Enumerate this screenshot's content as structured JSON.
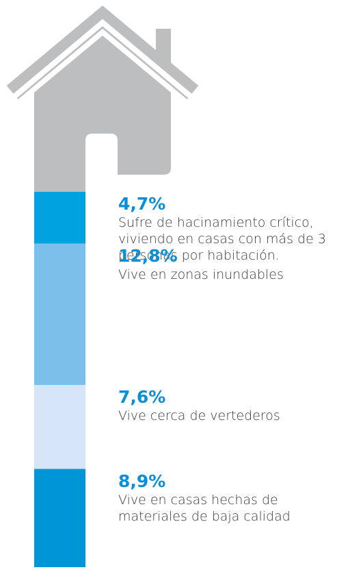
{
  "chart_data": {
    "type": "bar",
    "categories": [
      "Sufre de hacinamiento crítico, viviendo en casas con más de 3 personas por habitación.",
      "Vive en zonas inundables",
      "Vive cerca de vertederos",
      "Vive en casas hechas de materiales de baja calidad"
    ],
    "values": [
      4.7,
      12.8,
      7.6,
      8.9
    ],
    "value_labels": [
      "4,7%",
      "12,8%",
      "7,6%",
      "8,9%"
    ],
    "colors": [
      "#00a3e0",
      "#7bc0ea",
      "#d6e5f8",
      "#0096d6"
    ]
  }
}
